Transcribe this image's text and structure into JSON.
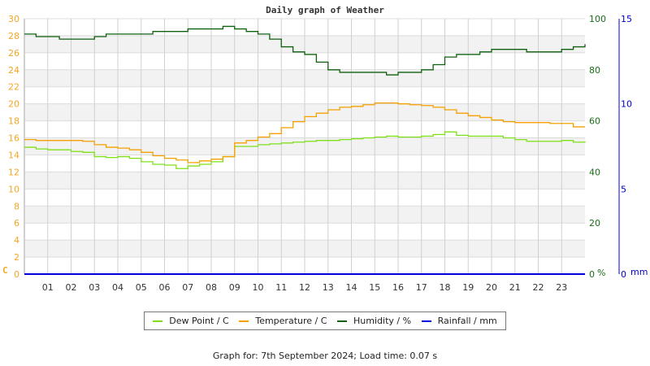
{
  "chart_data": {
    "type": "line",
    "title": "Daily graph of Weather",
    "xlabel": "",
    "x_ticks": [
      "01",
      "02",
      "03",
      "04",
      "05",
      "06",
      "07",
      "08",
      "09",
      "10",
      "11",
      "12",
      "13",
      "14",
      "15",
      "16",
      "17",
      "18",
      "19",
      "20",
      "21",
      "22",
      "23"
    ],
    "x_range_hours": [
      0,
      24
    ],
    "axes": {
      "left": {
        "label": "C",
        "range": [
          0,
          30
        ],
        "ticks": [
          0,
          2,
          4,
          6,
          8,
          10,
          12,
          14,
          16,
          18,
          20,
          22,
          24,
          26,
          28,
          30
        ],
        "color": "#f5a623"
      },
      "right": {
        "label": "%",
        "range": [
          0,
          100
        ],
        "ticks": [
          0,
          20,
          40,
          60,
          80,
          100
        ],
        "color": "#1a6e1a"
      },
      "right2": {
        "label": "mm",
        "range": [
          0,
          15
        ],
        "ticks": [
          0,
          5,
          10,
          15
        ],
        "color": "#0000cc"
      }
    },
    "grid": true,
    "legend_position": "bottom",
    "x": [
      0,
      0.5,
      1,
      1.5,
      2,
      2.5,
      3,
      3.5,
      4,
      4.5,
      5,
      5.5,
      6,
      6.5,
      7,
      7.5,
      8,
      8.5,
      9,
      9.5,
      10,
      10.5,
      11,
      11.5,
      12,
      12.5,
      13,
      13.5,
      14,
      14.5,
      15,
      15.5,
      16,
      16.5,
      17,
      17.5,
      18,
      18.5,
      19,
      19.5,
      20,
      20.5,
      21,
      21.5,
      22,
      22.5,
      23,
      23.5,
      24
    ],
    "series": [
      {
        "name": "Dew Point / C",
        "axis": "left",
        "color": "#7fe01a",
        "values": [
          14.9,
          14.7,
          14.6,
          14.6,
          14.4,
          14.3,
          13.8,
          13.7,
          13.8,
          13.6,
          13.2,
          12.9,
          12.8,
          12.4,
          12.7,
          12.9,
          13.2,
          13.8,
          15.0,
          15.0,
          15.2,
          15.3,
          15.4,
          15.5,
          15.6,
          15.7,
          15.7,
          15.8,
          15.9,
          16.0,
          16.1,
          16.2,
          16.1,
          16.1,
          16.2,
          16.4,
          16.7,
          16.3,
          16.2,
          16.2,
          16.2,
          16.0,
          15.8,
          15.6,
          15.6,
          15.6,
          15.7,
          15.5,
          15.6
        ]
      },
      {
        "name": "Temperature / C",
        "axis": "left",
        "color": "#f5a000",
        "values": [
          15.8,
          15.7,
          15.7,
          15.7,
          15.7,
          15.6,
          15.2,
          14.9,
          14.8,
          14.6,
          14.3,
          13.9,
          13.6,
          13.4,
          13.1,
          13.3,
          13.5,
          13.8,
          15.4,
          15.7,
          16.1,
          16.5,
          17.2,
          17.9,
          18.5,
          18.9,
          19.3,
          19.6,
          19.7,
          19.9,
          20.1,
          20.1,
          20.0,
          19.9,
          19.8,
          19.6,
          19.3,
          18.9,
          18.6,
          18.4,
          18.1,
          17.9,
          17.8,
          17.8,
          17.8,
          17.7,
          17.7,
          17.3,
          17.3
        ]
      },
      {
        "name": "Humidity / %",
        "axis": "right",
        "color": "#106010",
        "values": [
          94,
          93,
          93,
          92,
          92,
          92,
          93,
          94,
          94,
          94,
          94,
          95,
          95,
          95,
          96,
          96,
          96,
          97,
          96,
          95,
          94,
          92,
          89,
          87,
          86,
          83,
          80,
          79,
          79,
          79,
          79,
          78,
          79,
          79,
          80,
          82,
          85,
          86,
          86,
          87,
          88,
          88,
          88,
          87,
          87,
          87,
          88,
          89,
          90
        ]
      },
      {
        "name": "Rainfall / mm",
        "axis": "right2",
        "color": "#0000dd",
        "values": [
          0,
          0,
          0,
          0,
          0,
          0,
          0,
          0,
          0,
          0,
          0,
          0,
          0,
          0,
          0,
          0,
          0,
          0,
          0,
          0,
          0,
          0,
          0,
          0,
          0,
          0,
          0,
          0,
          0,
          0,
          0,
          0,
          0,
          0,
          0,
          0,
          0,
          0,
          0,
          0,
          0,
          0,
          0,
          0,
          0,
          0,
          0,
          0,
          0
        ]
      }
    ]
  },
  "title": "Daily graph of Weather",
  "legend": [
    {
      "label": "Dew Point / C",
      "color": "#7fe01a"
    },
    {
      "label": "Temperature / C",
      "color": "#f5a000"
    },
    {
      "label": "Humidity / %",
      "color": "#106010"
    },
    {
      "label": "Rainfall / mm",
      "color": "#0000dd"
    }
  ],
  "footer": "Graph for: 7th September 2024; Load time: 0.07 s"
}
